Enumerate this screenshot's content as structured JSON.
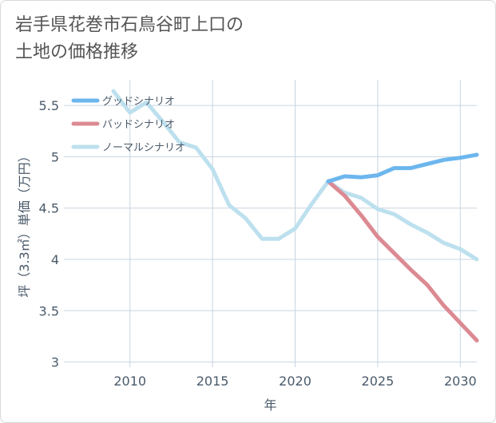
{
  "title_line1": "岩手県花巻市石鳥谷町上口の",
  "title_line2": "土地の価格推移",
  "chart_data": {
    "type": "line",
    "xlabel": "年",
    "ylabel": "坪（3.3㎡）単価（万円）",
    "xlim": [
      2006,
      2031
    ],
    "ylim": [
      2.95,
      5.75
    ],
    "xticks": [
      2010,
      2015,
      2020,
      2025,
      2030
    ],
    "yticks": [
      3,
      3.5,
      4,
      4.5,
      5,
      5.5
    ],
    "ytick_labels": [
      "3",
      "3.5",
      "4",
      "4.5",
      "5",
      "5.5"
    ],
    "grid": true,
    "legend_position": "top-left",
    "series": [
      {
        "name": "グッドシナリオ",
        "color": "#6cb6ee",
        "x": [
          2022,
          2023,
          2024,
          2025,
          2026,
          2027,
          2028,
          2029,
          2030,
          2031
        ],
        "y": [
          4.76,
          4.81,
          4.8,
          4.82,
          4.89,
          4.89,
          4.93,
          4.97,
          4.99,
          5.02
        ]
      },
      {
        "name": "バッドシナリオ",
        "color": "#dc8a92",
        "x": [
          2022,
          2023,
          2024,
          2025,
          2026,
          2027,
          2028,
          2029,
          2030,
          2031
        ],
        "y": [
          4.76,
          4.62,
          4.43,
          4.22,
          4.06,
          3.9,
          3.75,
          3.55,
          3.38,
          3.21
        ]
      },
      {
        "name": "ノーマルシナリオ",
        "color": "#bde0ee",
        "x": [
          2009,
          2010,
          2011,
          2012,
          2013,
          2014,
          2015,
          2016,
          2017,
          2018,
          2019,
          2020,
          2021,
          2022,
          2023,
          2024,
          2025,
          2026,
          2027,
          2028,
          2029,
          2030,
          2031
        ],
        "y": [
          5.64,
          5.43,
          5.53,
          5.34,
          5.14,
          5.09,
          4.88,
          4.53,
          4.4,
          4.2,
          4.2,
          4.3,
          4.54,
          4.76,
          4.65,
          4.6,
          4.49,
          4.44,
          4.34,
          4.26,
          4.16,
          4.1,
          4.0
        ]
      }
    ]
  }
}
